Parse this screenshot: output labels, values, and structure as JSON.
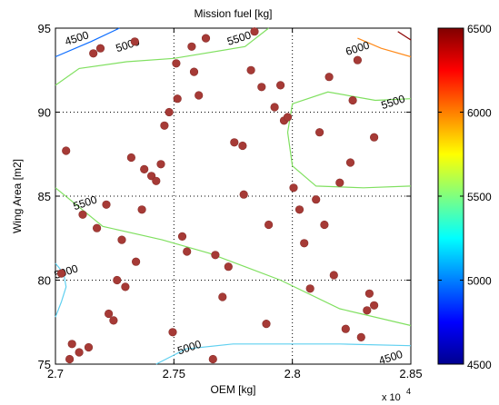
{
  "chart_data": {
    "type": "scatter",
    "title": "Mission fuel [kg]",
    "xlabel": "OEM [kg]",
    "ylabel": "Wing Area [m2]",
    "x_multiplier_label": "x 10",
    "x_multiplier_exponent": "4",
    "xlim": [
      2.7,
      2.85
    ],
    "ylim": [
      75,
      95
    ],
    "xticks": [
      "2.7",
      "2.75",
      "2.8",
      "2.85"
    ],
    "yticks": [
      "75",
      "80",
      "85",
      "90",
      "95"
    ],
    "grid": "dotted",
    "colorbar": {
      "range": [
        4500,
        6500
      ],
      "ticks": [
        "4500",
        "5000",
        "5500",
        "6000",
        "6500"
      ],
      "colormap": "jet"
    },
    "points_color": "#a63a36",
    "points": [
      [
        2.7025,
        80.4
      ],
      [
        2.7045,
        87.7
      ],
      [
        2.706,
        75.3
      ],
      [
        2.707,
        76.2
      ],
      [
        2.71,
        75.7
      ],
      [
        2.7115,
        83.9
      ],
      [
        2.714,
        76.0
      ],
      [
        2.716,
        93.5
      ],
      [
        2.7175,
        83.1
      ],
      [
        2.719,
        93.8
      ],
      [
        2.7215,
        84.5
      ],
      [
        2.7225,
        78.0
      ],
      [
        2.7245,
        77.6
      ],
      [
        2.726,
        80.0
      ],
      [
        2.728,
        82.4
      ],
      [
        2.7295,
        79.6
      ],
      [
        2.732,
        87.3
      ],
      [
        2.7335,
        94.2
      ],
      [
        2.734,
        81.1
      ],
      [
        2.7365,
        84.2
      ],
      [
        2.7375,
        86.6
      ],
      [
        2.7405,
        86.2
      ],
      [
        2.7425,
        85.9
      ],
      [
        2.7445,
        86.9
      ],
      [
        2.746,
        89.2
      ],
      [
        2.748,
        90.0
      ],
      [
        2.7495,
        76.9
      ],
      [
        2.7515,
        90.8
      ],
      [
        2.751,
        92.9
      ],
      [
        2.7535,
        82.6
      ],
      [
        2.7555,
        81.7
      ],
      [
        2.7575,
        93.9
      ],
      [
        2.7585,
        92.4
      ],
      [
        2.7605,
        91.0
      ],
      [
        2.7635,
        94.4
      ],
      [
        2.7665,
        75.3
      ],
      [
        2.7675,
        81.5
      ],
      [
        2.7705,
        79.0
      ],
      [
        2.773,
        80.8
      ],
      [
        2.7755,
        88.2
      ],
      [
        2.779,
        88.0
      ],
      [
        2.7795,
        85.1
      ],
      [
        2.7825,
        92.5
      ],
      [
        2.784,
        94.8
      ],
      [
        2.787,
        91.5
      ],
      [
        2.789,
        77.4
      ],
      [
        2.79,
        83.3
      ],
      [
        2.7925,
        90.3
      ],
      [
        2.795,
        91.6
      ],
      [
        2.7965,
        89.5
      ],
      [
        2.798,
        89.7
      ],
      [
        2.8005,
        85.5
      ],
      [
        2.803,
        84.2
      ],
      [
        2.805,
        82.2
      ],
      [
        2.8075,
        79.5
      ],
      [
        2.81,
        84.8
      ],
      [
        2.8115,
        88.8
      ],
      [
        2.8135,
        83.3
      ],
      [
        2.8155,
        92.1
      ],
      [
        2.8175,
        80.3
      ],
      [
        2.82,
        85.8
      ],
      [
        2.8225,
        77.1
      ],
      [
        2.8245,
        87.0
      ],
      [
        2.8255,
        90.7
      ],
      [
        2.8275,
        93.1
      ],
      [
        2.829,
        76.6
      ],
      [
        2.8315,
        78.2
      ],
      [
        2.8325,
        79.2
      ],
      [
        2.8345,
        88.5
      ],
      [
        2.8345,
        78.5
      ]
    ],
    "contours": [
      {
        "level": 4500,
        "color": "#0b6cff",
        "path": [
          [
            2.7,
            93.3
          ],
          [
            2.715,
            94.2
          ],
          [
            2.727,
            95.0
          ]
        ]
      },
      {
        "level": 5000,
        "color": "#60d0f0",
        "path": [
          [
            2.7,
            81.0
          ],
          [
            2.7035,
            80.4
          ],
          [
            2.7045,
            79.6
          ],
          [
            2.7025,
            78.7
          ],
          [
            2.7,
            77.8
          ]
        ]
      },
      {
        "level": 5000,
        "color": "#60d0f0",
        "path": [
          [
            2.7425,
            75.0
          ],
          [
            2.755,
            75.9
          ],
          [
            2.775,
            76.2
          ],
          [
            2.8,
            76.2
          ],
          [
            2.82,
            76.2
          ],
          [
            2.85,
            76.1
          ]
        ]
      },
      {
        "level": 5500,
        "color": "#80e060",
        "path": [
          [
            2.7,
            91.6
          ],
          [
            2.71,
            92.6
          ],
          [
            2.73,
            93.0
          ],
          [
            2.75,
            93.2
          ],
          [
            2.78,
            93.9
          ],
          [
            2.79,
            95.0
          ]
        ]
      },
      {
        "level": 5500,
        "color": "#80e060",
        "path": [
          [
            2.7,
            85.5
          ],
          [
            2.72,
            83.2
          ],
          [
            2.745,
            82.4
          ],
          [
            2.765,
            81.6
          ],
          [
            2.78,
            80.8
          ],
          [
            2.795,
            80.0
          ],
          [
            2.82,
            78.3
          ],
          [
            2.85,
            77.3
          ]
        ]
      },
      {
        "level": 5500,
        "color": "#80e060",
        "path": [
          [
            2.85,
            90.8
          ],
          [
            2.835,
            90.7
          ],
          [
            2.815,
            91.2
          ],
          [
            2.8,
            90.5
          ],
          [
            2.798,
            88.8
          ],
          [
            2.8,
            86.8
          ],
          [
            2.81,
            85.6
          ],
          [
            2.83,
            85.5
          ],
          [
            2.85,
            85.6
          ]
        ]
      },
      {
        "level": 6000,
        "color": "#ff8a1a",
        "path": [
          [
            2.8275,
            94.4
          ],
          [
            2.8375,
            93.8
          ],
          [
            2.85,
            93.3
          ]
        ]
      },
      {
        "level": 6500,
        "color": "#8b0000",
        "path": [
          [
            2.8445,
            94.8
          ],
          [
            2.85,
            94.3
          ]
        ]
      }
    ],
    "contour_labels": [
      {
        "text": "4500",
        "x": 2.709,
        "y": 94.4
      },
      {
        "text": "5000",
        "x": 2.7305,
        "y": 94.0
      },
      {
        "text": "5500",
        "x": 2.7775,
        "y": 94.4
      },
      {
        "text": "6000",
        "x": 2.8275,
        "y": 93.8
      },
      {
        "text": "5500",
        "x": 2.8425,
        "y": 90.6
      },
      {
        "text": "5500",
        "x": 2.7125,
        "y": 84.6
      },
      {
        "text": "5000",
        "x": 2.7045,
        "y": 80.5
      },
      {
        "text": "5000",
        "x": 2.7565,
        "y": 76.0
      },
      {
        "text": "4500",
        "x": 2.8415,
        "y": 75.4
      }
    ]
  }
}
